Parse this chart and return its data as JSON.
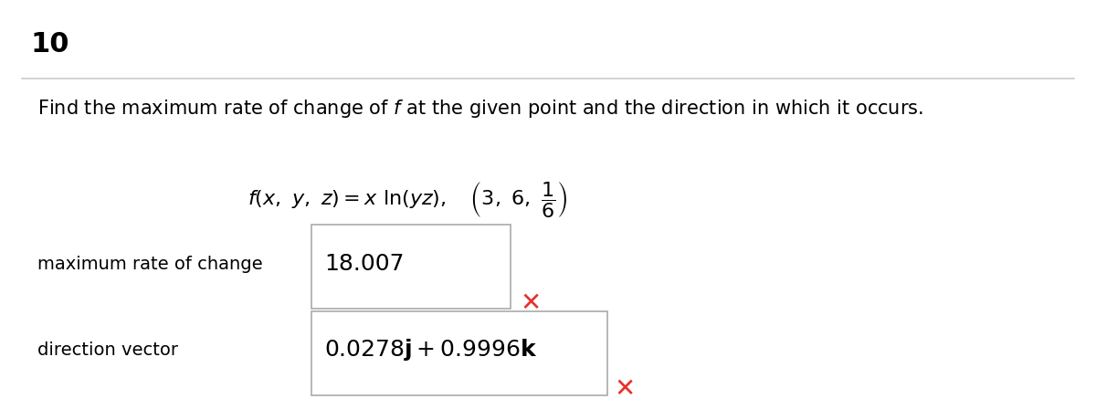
{
  "problem_number": "10",
  "instruction": "Find the maximum rate of change of $f$ at the given point and the direction in which it occurs.",
  "row1_label": "maximum rate of change",
  "row1_value": "18.007",
  "row2_label": "direction vector",
  "background_color": "#ffffff",
  "text_color": "#000000",
  "cross_color": "#e8302a",
  "box_edge_color": "#aaaaaa",
  "separator_color": "#cccccc",
  "title_fontsize": 22,
  "instruction_fontsize": 15,
  "label_fontsize": 14,
  "value_fontsize": 18,
  "function_fontsize": 16
}
